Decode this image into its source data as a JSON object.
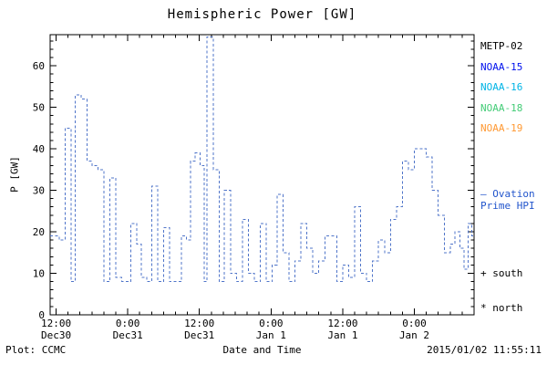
{
  "chart_data": {
    "type": "line",
    "subtype": "step-dashed",
    "title": "Hemispheric Power [GW]",
    "xlabel": "Date and Time",
    "ylabel": "P [GW]",
    "ylim": [
      0,
      67.5
    ],
    "yticks": [
      0,
      10,
      20,
      30,
      40,
      50,
      60
    ],
    "y_minor_step": 2,
    "x_hours_total": 71,
    "x_minor_step_hours": 2,
    "grid": false,
    "legend_position": "right-outside",
    "xticks": [
      {
        "hour": 1,
        "time": "12:00",
        "date": "Dec30"
      },
      {
        "hour": 13,
        "time": "0:00",
        "date": "Dec31"
      },
      {
        "hour": 25,
        "time": "12:00",
        "date": "Dec31"
      },
      {
        "hour": 37,
        "time": "0:00",
        "date": "Jan 1"
      },
      {
        "hour": 49,
        "time": "12:00",
        "date": "Jan 1"
      },
      {
        "hour": 61,
        "time": "0:00",
        "date": "Jan 2"
      }
    ],
    "series": [
      {
        "name": "Ovation Prime HPI",
        "color": "#4f74c9",
        "style": "dashed-step",
        "points": [
          [
            0,
            19
          ],
          [
            1.5,
            18
          ],
          [
            2.5,
            45
          ],
          [
            3.5,
            8
          ],
          [
            4.2,
            53
          ],
          [
            5.2,
            52
          ],
          [
            6.2,
            37
          ],
          [
            7,
            36
          ],
          [
            8,
            35
          ],
          [
            9,
            8
          ],
          [
            10,
            33
          ],
          [
            11,
            9
          ],
          [
            12,
            8
          ],
          [
            13.5,
            22
          ],
          [
            14.5,
            17
          ],
          [
            15.3,
            9
          ],
          [
            16.2,
            8
          ],
          [
            17,
            31
          ],
          [
            18,
            8
          ],
          [
            19,
            21
          ],
          [
            20,
            8
          ],
          [
            21,
            8
          ],
          [
            22,
            19
          ],
          [
            22.8,
            18
          ],
          [
            23.5,
            37
          ],
          [
            24.3,
            39
          ],
          [
            25.1,
            36
          ],
          [
            25.8,
            8
          ],
          [
            26.3,
            67
          ],
          [
            27.3,
            35
          ],
          [
            28.3,
            8
          ],
          [
            29.2,
            30
          ],
          [
            30.2,
            10
          ],
          [
            31.2,
            8
          ],
          [
            32.2,
            23
          ],
          [
            33.2,
            10
          ],
          [
            34.2,
            8
          ],
          [
            35.2,
            22
          ],
          [
            36.2,
            8
          ],
          [
            37.2,
            12
          ],
          [
            38,
            29
          ],
          [
            39,
            15
          ],
          [
            40,
            8
          ],
          [
            41,
            13
          ],
          [
            42,
            22
          ],
          [
            43,
            16
          ],
          [
            44,
            10
          ],
          [
            45,
            13
          ],
          [
            46,
            19
          ],
          [
            47,
            19
          ],
          [
            48,
            8
          ],
          [
            49,
            12
          ],
          [
            50,
            9
          ],
          [
            51,
            26
          ],
          [
            52,
            10
          ],
          [
            53,
            8
          ],
          [
            54,
            13
          ],
          [
            55,
            18
          ],
          [
            56,
            15
          ],
          [
            57,
            23
          ],
          [
            58,
            26
          ],
          [
            59,
            37
          ],
          [
            60,
            35
          ],
          [
            61,
            40
          ],
          [
            62,
            40
          ],
          [
            63,
            38
          ],
          [
            64,
            30
          ],
          [
            65,
            24
          ],
          [
            66,
            15
          ],
          [
            67,
            17
          ],
          [
            67.8,
            20
          ],
          [
            68.6,
            16
          ],
          [
            69.3,
            11
          ],
          [
            70,
            22
          ],
          [
            70.6,
            19
          ]
        ]
      }
    ]
  },
  "legend": {
    "satellites": [
      {
        "label": "METP-02",
        "color": "#000000"
      },
      {
        "label": "NOAA-15",
        "color": "#0011ee"
      },
      {
        "label": "NOAA-16",
        "color": "#00b4e6"
      },
      {
        "label": "NOAA-18",
        "color": "#44cc77"
      },
      {
        "label": "NOAA-19",
        "color": "#ff9933"
      }
    ],
    "ovation": {
      "marker": "–",
      "label": "Ovation Prime HPI",
      "color": "#2255cc"
    },
    "markers": [
      {
        "sym": "+",
        "label": "south"
      },
      {
        "sym": "*",
        "label": "north"
      }
    ]
  },
  "footer": {
    "left": "Plot: CCMC",
    "right": "2015/01/02 11:55:11"
  }
}
